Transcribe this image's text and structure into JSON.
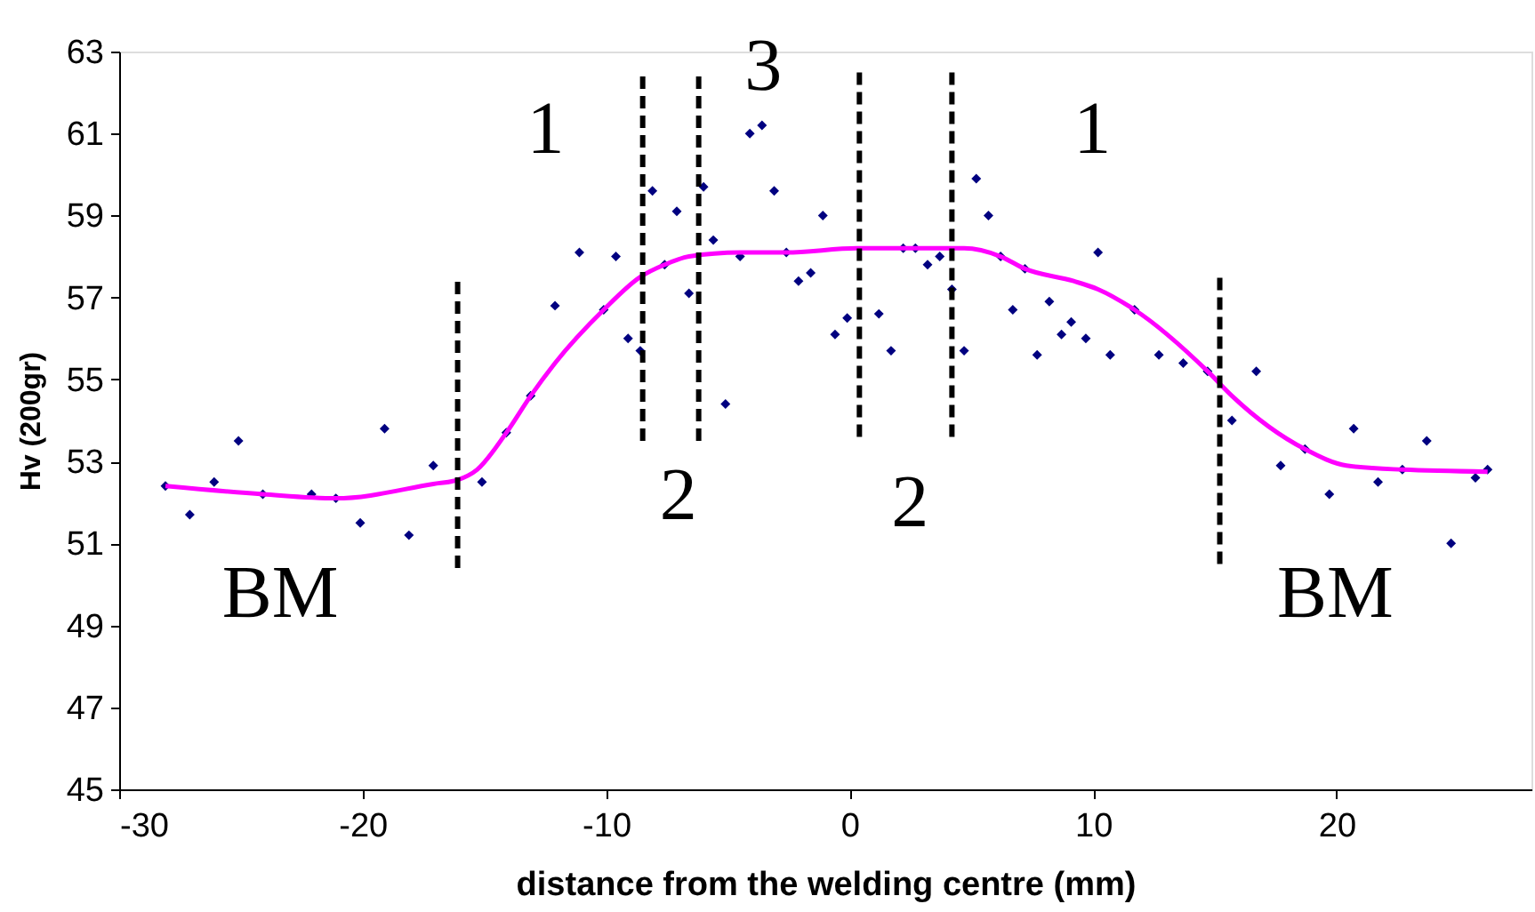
{
  "chart_data": {
    "type": "scatter",
    "xlabel": "distance from the welding centre (mm)",
    "ylabel": "Hv (200gr)",
    "xlim": [
      -30,
      28
    ],
    "xticks": [
      -30,
      -20,
      -10,
      0,
      10,
      20
    ],
    "ylim": [
      45,
      63
    ],
    "yticks": [
      45,
      47,
      49,
      51,
      53,
      55,
      57,
      59,
      61,
      63
    ],
    "grid": false,
    "series": [
      {
        "marker": "diamond",
        "color": "#000080",
        "x": [
          -28.1,
          -27.1,
          -26.1,
          -25.1,
          -24.1,
          -22.1,
          -21.1,
          -20.1,
          -19.1,
          -18.1,
          -17.1,
          -15.1,
          -14.1,
          -13.1,
          -12.1,
          -11.1,
          -10.1,
          -9.6,
          -9.1,
          -8.6,
          -8.1,
          -7.6,
          -7.1,
          -6.6,
          -6.0,
          -5.6,
          -5.1,
          -4.5,
          -4.1,
          -3.6,
          -3.1,
          -2.6,
          -2.1,
          -1.6,
          -1.1,
          -0.6,
          -0.1,
          1.2,
          1.7,
          2.2,
          2.7,
          3.2,
          3.7,
          4.2,
          4.7,
          5.2,
          5.7,
          6.2,
          6.7,
          7.2,
          7.7,
          8.2,
          8.7,
          9.1,
          9.7,
          10.2,
          10.7,
          11.7,
          12.7,
          13.7,
          14.7,
          15.7,
          16.7,
          17.7,
          18.7,
          19.7,
          20.7,
          21.7,
          22.7,
          23.7,
          24.7,
          25.7,
          26.2
        ],
        "values": [
          52.4,
          51.7,
          52.5,
          53.5,
          52.2,
          52.2,
          52.1,
          51.5,
          53.8,
          51.2,
          52.9,
          52.5,
          53.7,
          54.6,
          56.8,
          58.1,
          56.7,
          58.0,
          56.0,
          55.7,
          59.6,
          57.8,
          59.1,
          57.1,
          59.7,
          58.4,
          54.4,
          58.0,
          61.0,
          61.2,
          59.6,
          58.1,
          57.4,
          57.6,
          59.0,
          56.1,
          56.5,
          56.6,
          55.7,
          58.2,
          58.2,
          57.8,
          58.0,
          57.2,
          55.7,
          59.9,
          59.0,
          58.0,
          56.7,
          57.7,
          55.6,
          56.9,
          56.1,
          56.4,
          56.0,
          58.1,
          55.6,
          56.7,
          55.6,
          55.4,
          55.2,
          54.0,
          55.2,
          52.9,
          53.3,
          52.2,
          53.8,
          52.5,
          52.8,
          53.5,
          51.0,
          52.6,
          52.8
        ]
      },
      {
        "type": "line",
        "marker": "none",
        "line_style": "solid",
        "color": "#ff00ff",
        "x": [
          -28.1,
          -24.1,
          -21.1,
          -17.1,
          -16.1,
          -15.3,
          -14.1,
          -13.1,
          -12.1,
          -10.1,
          -8.6,
          -7.6,
          -6.6,
          -4.5,
          -2.6,
          0.3,
          2.7,
          4.7,
          6.2,
          7.2,
          9.2,
          10.2,
          11.7,
          14.7,
          15.7,
          18.7,
          20.4,
          22.7,
          26.2
        ],
        "values": [
          52.4,
          52.2,
          52.1,
          52.45,
          52.55,
          52.8,
          53.7,
          54.6,
          55.4,
          56.7,
          57.5,
          57.8,
          58.0,
          58.1,
          58.1,
          58.2,
          58.2,
          58.2,
          58.0,
          57.7,
          57.4,
          57.2,
          56.7,
          55.2,
          54.6,
          53.3,
          52.9,
          52.8,
          52.75
        ]
      },
      {
        "type": "line",
        "marker": "none",
        "line_style": "dashed",
        "color": "#000000",
        "x": [
          -16.1,
          -16.1
        ],
        "values": [
          50.4,
          57.5
        ]
      },
      {
        "type": "line",
        "marker": "none",
        "line_style": "dashed",
        "color": "#000000",
        "x": [
          -8.5,
          -8.5
        ],
        "values": [
          53.5,
          62.5
        ]
      },
      {
        "type": "line",
        "marker": "none",
        "line_style": "dashed",
        "color": "#000000",
        "x": [
          -6.2,
          -6.2
        ],
        "values": [
          53.5,
          62.5
        ]
      },
      {
        "type": "line",
        "marker": "none",
        "line_style": "dashed",
        "color": "#000000",
        "x": [
          0.4,
          0.4
        ],
        "values": [
          53.6,
          62.6
        ]
      },
      {
        "type": "line",
        "marker": "none",
        "line_style": "dashed",
        "color": "#000000",
        "x": [
          4.2,
          4.2
        ],
        "values": [
          53.6,
          62.6
        ]
      },
      {
        "type": "line",
        "marker": "none",
        "line_style": "dashed",
        "color": "#000000",
        "x": [
          15.2,
          15.2
        ],
        "values": [
          50.5,
          57.6
        ]
      }
    ],
    "annotations": [
      "1",
      "3",
      "1",
      "2",
      "2",
      "BM",
      "BM"
    ]
  }
}
